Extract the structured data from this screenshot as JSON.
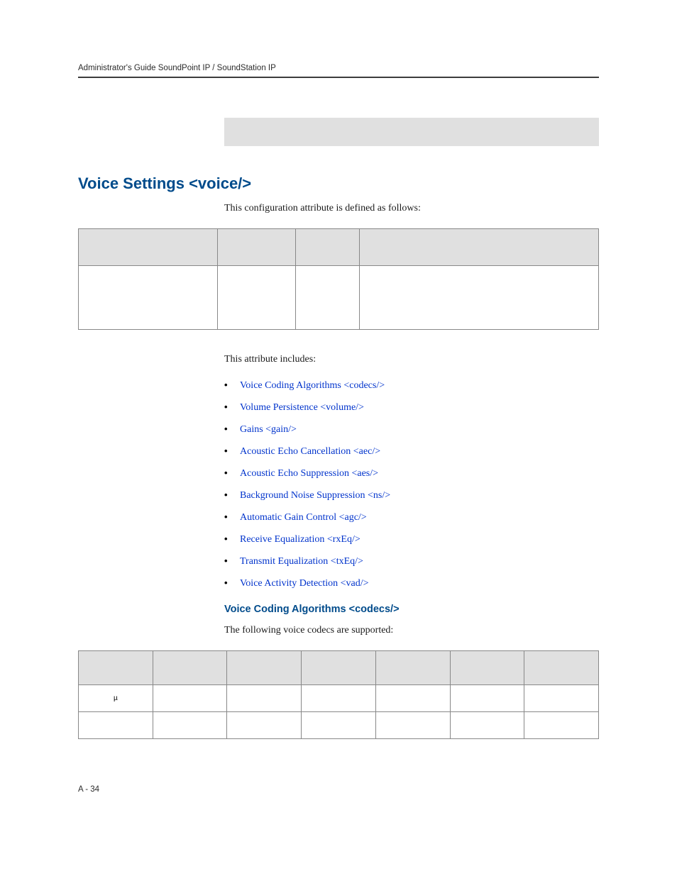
{
  "header": {
    "running": "Administrator's Guide SoundPoint IP / SoundStation IP"
  },
  "section": {
    "title": "Voice Settings <voice/>",
    "intro": "This configuration attribute is defined as follows:",
    "after_table": "This attribute includes:",
    "sub_title": "Voice Coding Algorithms <codecs/>",
    "sub_intro": "The following voice codecs are supported:"
  },
  "links": [
    "Voice Coding Algorithms <codecs/>",
    "Volume Persistence <volume/>",
    "Gains <gain/>",
    "Acoustic Echo Cancellation <aec/>",
    "Acoustic Echo Suppression <aes/>",
    "Background Noise Suppression <ns/>",
    "Automatic Gain Control <agc/>",
    "Receive Equalization <rxEq/>",
    "Transmit Equalization <txEq/>",
    "Voice Activity Detection <vad/>"
  ],
  "codec_rows": [
    {
      "algorithm_glyph": "µ"
    },
    {
      "algorithm_glyph": ""
    }
  ],
  "footer": {
    "page": "A - 34"
  },
  "styling": {
    "link_color": "#0033cc",
    "heading_color": "#004b8b",
    "strip_bg": "#e0e0e0",
    "table_border": "#888888",
    "body_font": "Book Antiqua, Palatino, Times New Roman, serif",
    "heading_font": "Futura, Trebuchet MS, Arial, sans-serif",
    "body_fontsize": 14,
    "h1_fontsize": 22,
    "h2_fontsize": 14.5
  }
}
